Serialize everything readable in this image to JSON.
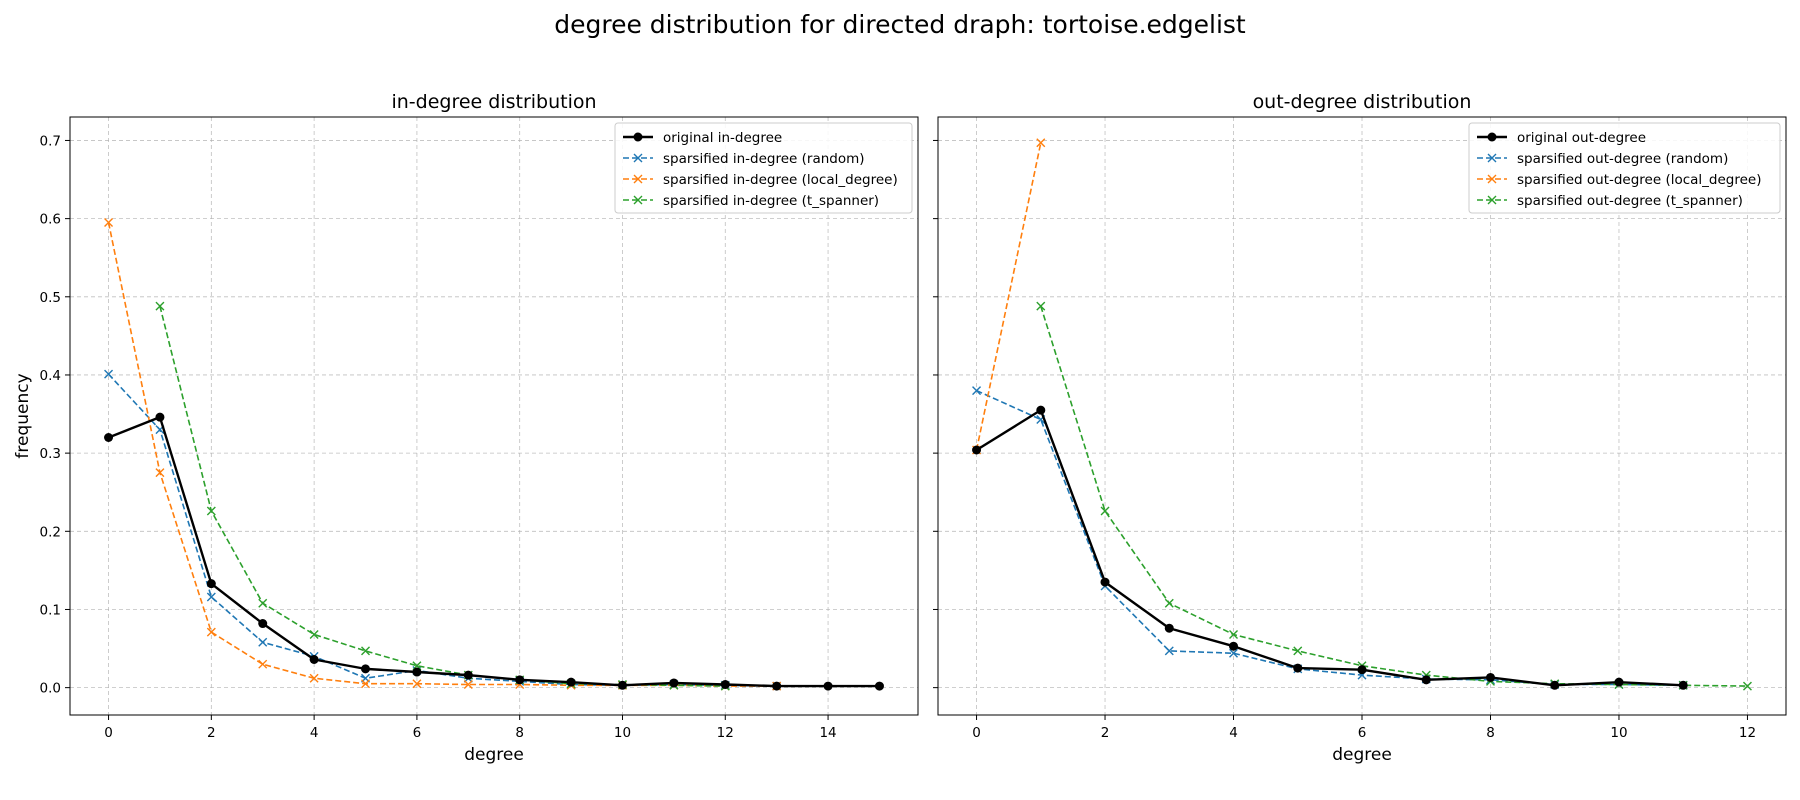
{
  "suptitle": "degree distribution for directed draph: tortoise.edgelist",
  "colors": {
    "original": "#000000",
    "random": "#1f77b4",
    "local_degree": "#ff7f0e",
    "t_spanner": "#2ca02c"
  },
  "chart_data": [
    {
      "type": "line",
      "title": "in-degree distribution",
      "xlabel": "degree",
      "ylabel": "frequency",
      "xlim": [
        -0.75,
        15.75
      ],
      "ylim": [
        -0.035,
        0.73
      ],
      "xticks": [
        0,
        2,
        4,
        6,
        8,
        10,
        12,
        14
      ],
      "yticks": [
        0.0,
        0.1,
        0.2,
        0.3,
        0.4,
        0.5,
        0.6,
        0.7
      ],
      "grid": true,
      "legend": "top-right",
      "series": [
        {
          "name": "original in-degree",
          "key": "original",
          "marker": "o",
          "dashed": false,
          "x": [
            0,
            1,
            2,
            3,
            4,
            5,
            6,
            7,
            8,
            9,
            10,
            11,
            12,
            13,
            14,
            15
          ],
          "y": [
            0.32,
            0.346,
            0.133,
            0.082,
            0.036,
            0.024,
            0.02,
            0.016,
            0.01,
            0.007,
            0.003,
            0.006,
            0.004,
            0.002,
            0.002,
            0.002
          ]
        },
        {
          "name": "sparsified in-degree (random)",
          "key": "random",
          "marker": "x",
          "dashed": true,
          "x": [
            0,
            1,
            2,
            3,
            4,
            5,
            6,
            7,
            8,
            9,
            10,
            11,
            12,
            13
          ],
          "y": [
            0.401,
            0.33,
            0.116,
            0.058,
            0.04,
            0.012,
            0.022,
            0.012,
            0.008,
            0.004,
            0.003,
            0.004,
            0.003,
            0.002
          ]
        },
        {
          "name": "sparsified in-degree (local_degree)",
          "key": "local_degree",
          "marker": "x",
          "dashed": true,
          "x": [
            0,
            1,
            2,
            3,
            4,
            5,
            6,
            7,
            8,
            9,
            10,
            11,
            12,
            13
          ],
          "y": [
            0.595,
            0.275,
            0.071,
            0.03,
            0.012,
            0.005,
            0.005,
            0.004,
            0.004,
            0.003,
            0.003,
            0.003,
            0.002,
            0.002
          ]
        },
        {
          "name": "sparsified in-degree (t_spanner)",
          "key": "t_spanner",
          "marker": "x",
          "dashed": true,
          "x": [
            1,
            2,
            3,
            4,
            5,
            6,
            7,
            8,
            9,
            10,
            11,
            12
          ],
          "y": [
            0.488,
            0.226,
            0.108,
            0.068,
            0.047,
            0.028,
            0.016,
            0.01,
            0.005,
            0.004,
            0.003,
            0.002
          ]
        }
      ]
    },
    {
      "type": "line",
      "title": "out-degree distribution",
      "xlabel": "degree",
      "ylabel": "",
      "xlim": [
        -0.6,
        12.6
      ],
      "ylim": [
        -0.035,
        0.73
      ],
      "xticks": [
        0,
        2,
        4,
        6,
        8,
        10,
        12
      ],
      "yticks": [
        0.0,
        0.1,
        0.2,
        0.3,
        0.4,
        0.5,
        0.6,
        0.7
      ],
      "grid": true,
      "legend": "top-right",
      "series": [
        {
          "name": "original out-degree",
          "key": "original",
          "marker": "o",
          "dashed": false,
          "x": [
            0,
            1,
            2,
            3,
            4,
            5,
            6,
            7,
            8,
            9,
            10,
            11
          ],
          "y": [
            0.304,
            0.355,
            0.135,
            0.076,
            0.053,
            0.025,
            0.023,
            0.01,
            0.013,
            0.003,
            0.007,
            0.003
          ]
        },
        {
          "name": "sparsified out-degree (random)",
          "key": "random",
          "marker": "x",
          "dashed": true,
          "x": [
            0,
            1,
            2,
            3,
            4,
            5,
            6,
            7,
            8,
            9,
            10,
            11
          ],
          "y": [
            0.38,
            0.343,
            0.13,
            0.047,
            0.044,
            0.024,
            0.016,
            0.011,
            0.01,
            0.004,
            0.004,
            0.003
          ]
        },
        {
          "name": "sparsified out-degree (local_degree)",
          "key": "local_degree",
          "marker": "x",
          "dashed": true,
          "x": [
            0,
            1
          ],
          "y": [
            0.304,
            0.697
          ]
        },
        {
          "name": "sparsified out-degree (t_spanner)",
          "key": "t_spanner",
          "marker": "x",
          "dashed": true,
          "x": [
            1,
            2,
            3,
            4,
            5,
            6,
            7,
            8,
            9,
            10,
            11,
            12
          ],
          "y": [
            0.488,
            0.226,
            0.108,
            0.068,
            0.047,
            0.028,
            0.016,
            0.008,
            0.005,
            0.004,
            0.003,
            0.002
          ]
        }
      ]
    }
  ]
}
